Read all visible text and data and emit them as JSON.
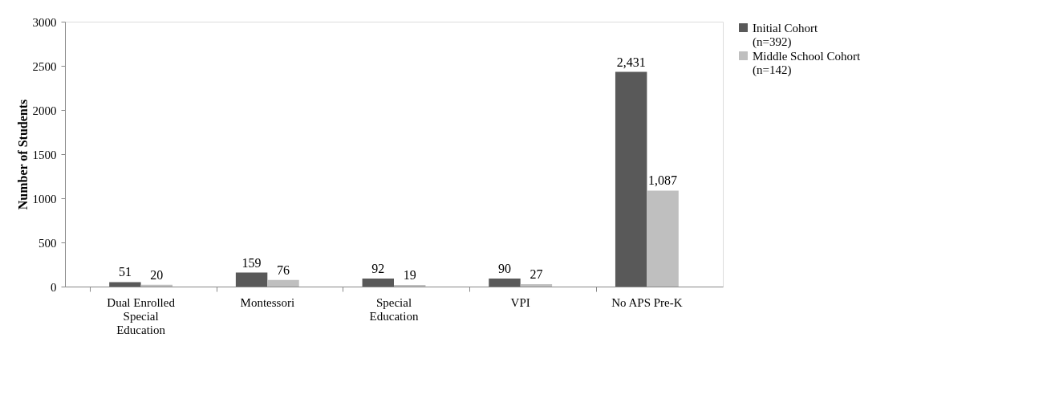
{
  "chart_data": {
    "type": "bar",
    "ylabel": "Number of Students",
    "categories": [
      "Dual Enrolled Special Education",
      "Montessori",
      "Special Education",
      "VPI",
      "No APS Pre-K"
    ],
    "series": [
      {
        "name": "Initial Cohort (n=392)",
        "color": "#595959",
        "values": [
          51,
          159,
          92,
          90,
          2431
        ],
        "value_labels": [
          "51",
          "159",
          "92",
          "90",
          "2,431"
        ]
      },
      {
        "name": "Middle School Cohort (n=142)",
        "color": "#bfbfbf",
        "values": [
          20,
          76,
          19,
          27,
          1087
        ],
        "value_labels": [
          "20",
          "76",
          "19",
          "27",
          "1,087"
        ]
      }
    ],
    "ylim": [
      0,
      3000
    ],
    "yticks": [
      0,
      500,
      1000,
      1500,
      2000,
      2500,
      3000
    ],
    "grid": false,
    "legend": "right"
  }
}
